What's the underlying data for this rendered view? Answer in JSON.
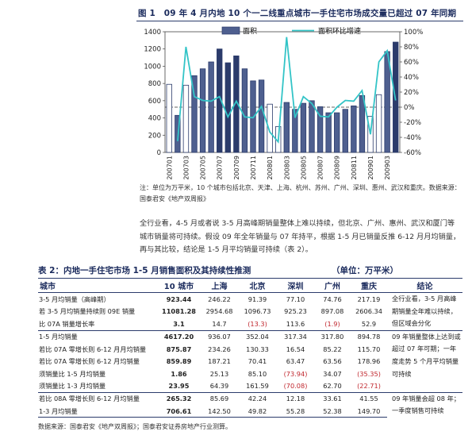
{
  "figure": {
    "title": "图 1　09 年 4 月内地 10 个一二线重点城市一手住宅市场成交量已超过 07 年同期",
    "note": "注：单位为万平米，10 个城市包括北京、天津、上海、杭州、苏州、广州、深圳、惠州、武汉和重庆。数据来源：国泰君安《地产双周报》",
    "legend": {
      "bar": "面积",
      "line": "面积环比增速"
    }
  },
  "chart_data": {
    "type": "bar",
    "title": "09 年 4 月内地 10 个一二线重点城市一手住宅市场成交量已超过 07 年同期",
    "categories": [
      "200701",
      "200702",
      "200703",
      "200704",
      "200705",
      "200706",
      "200707",
      "200708",
      "200709",
      "200710",
      "200711",
      "200712",
      "200801",
      "200802",
      "200803",
      "200804",
      "200805",
      "200806",
      "200807",
      "200808",
      "200809",
      "200810",
      "200811",
      "200812",
      "200901",
      "200902",
      "200903",
      "200904"
    ],
    "x_tick_labels": [
      "200701",
      "200703",
      "200705",
      "200707",
      "200709",
      "200711",
      "200801",
      "200803",
      "200805",
      "200807",
      "200809",
      "200811",
      "200901",
      "200903"
    ],
    "series": [
      {
        "name": "面积",
        "type": "bar",
        "axis": "left",
        "values": [
          790,
          430,
          780,
          890,
          970,
          1050,
          1200,
          1040,
          1120,
          970,
          830,
          840,
          560,
          300,
          580,
          500,
          570,
          600,
          530,
          460,
          460,
          500,
          540,
          660,
          420,
          670,
          1170,
          1280
        ]
      },
      {
        "name": "面积环比增速",
        "type": "line",
        "axis": "right",
        "values": [
          null,
          -45,
          80,
          14,
          9,
          8,
          14,
          -13,
          8,
          -13,
          -14,
          1,
          -33,
          -46,
          93,
          -14,
          14,
          5,
          -12,
          -13,
          0,
          9,
          8,
          22,
          -36,
          60,
          75,
          9
        ]
      }
    ],
    "ylim_left": [
      0,
      1400
    ],
    "ylim_right": [
      -60,
      100
    ],
    "yticks_left": [
      0,
      200,
      400,
      600,
      800,
      1000,
      1200,
      1400
    ],
    "yticks_right": [
      "-60%",
      "-40%",
      "-20%",
      "0%",
      "20%",
      "40%",
      "60%",
      "80%",
      "100%"
    ],
    "legend_position": "top",
    "grid": false,
    "colors": {
      "bar": "#4e5f8f",
      "bar_highlight": "#2b3b6b",
      "line": "#33c4c7"
    }
  },
  "paragraph": "全行业看，4-5 月或者说 3-5 月高峰期销量整体上难以持续，但北京、广州、惠州、武汉和厦门等城市销量将可持续。假设 09 年全年销量与 07 年持平，根据 1-5 月已销量反推 6-12 月月均销量，再与其比较，结论是 1-5 月平均销量可持续（表 2）。",
  "table": {
    "title": "表 2：内地一手住宅市场 1-5 月销售面积及其持续性推测",
    "unit": "（单位：万平米）",
    "headers": [
      "城市",
      "10 城市",
      "上海",
      "北京",
      "深圳",
      "广州",
      "重庆",
      "结论"
    ],
    "rows": [
      {
        "label": "3-5 月均销量（高峰期）",
        "v": [
          "923.44",
          "246.22",
          "91.39",
          "77.10",
          "74.76",
          "217.19"
        ],
        "grp": true
      },
      {
        "label": "若 3-5 月均销量持续则 09E 销量",
        "v": [
          "11081.28",
          "2954.68",
          "1096.73",
          "925.23",
          "897.08",
          "2606.34"
        ]
      },
      {
        "label": "比 07A 销量增长率",
        "v": [
          "3.1",
          "14.7",
          "(13.3)",
          "113.6",
          "(1.9)",
          "52.9"
        ]
      },
      {
        "label": "1-5 月均销量",
        "v": [
          "4617.20",
          "936.07",
          "352.04",
          "317.34",
          "317.80",
          "894.78"
        ],
        "grp": true
      },
      {
        "label": "若比 07A 零增长则 6-12 月月均销量",
        "v": [
          "875.87",
          "234.26",
          "130.33",
          "16.54",
          "85.22",
          "115.70"
        ]
      },
      {
        "label": "若比 07A 零增长则 6-12 月均销量",
        "v": [
          "859.89",
          "187.21",
          "70.41",
          "63.47",
          "63.56",
          "178.96"
        ]
      },
      {
        "label": "须销量比 1-5 月均销量",
        "v": [
          "1.86",
          "25.13",
          "85.10",
          "(73.94)",
          "34.07",
          "(35.35)"
        ]
      },
      {
        "label": "须销量比 1-3 月均销量",
        "v": [
          "23.95",
          "64.39",
          "161.59",
          "(70.08)",
          "62.70",
          "(22.71)"
        ]
      },
      {
        "label": "若比 08A 零增长则 6-12 月均销量",
        "v": [
          "265.32",
          "85.69",
          "42.24",
          "12.18",
          "33.61",
          "41.55"
        ],
        "grp": true
      },
      {
        "label": "1-3 月均销量",
        "v": [
          "706.61",
          "142.50",
          "49.82",
          "55.28",
          "52.38",
          "149.70"
        ],
        "last": true
      }
    ],
    "conclusions": [
      "全行业看，3-5 月高峰期销量全年难以持续，但区域会分化",
      "09 年销量整体上达到或超过 07 年可期；一年度走势 5 个月平均销量可持续",
      "09 年销量会超 08 年；一季度销售可持续"
    ],
    "source": "数据来源：国泰君安《地产双周报》；国泰君安证券房地产行业测算。"
  }
}
